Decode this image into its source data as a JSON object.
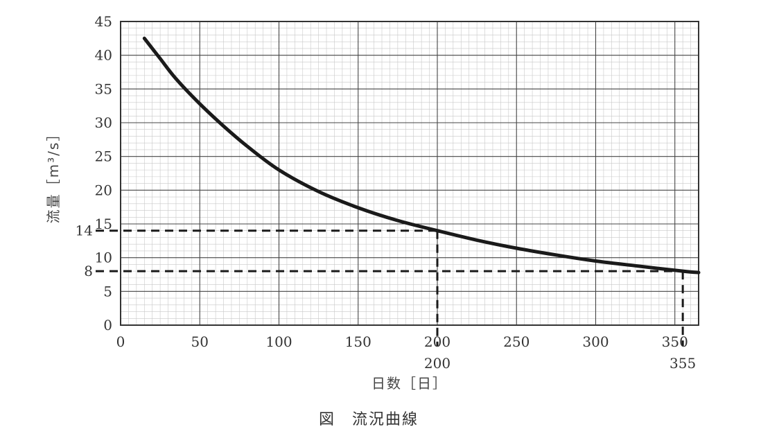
{
  "chart_data": {
    "type": "line",
    "title": "",
    "caption": "図　流況曲線",
    "xlabel": "日数［日］",
    "ylabel": "流量［m³/s］",
    "xlim": [
      0,
      365
    ],
    "ylim": [
      0,
      45
    ],
    "x_ticks": [
      0,
      50,
      100,
      150,
      200,
      250,
      300,
      350
    ],
    "x_tick_labels": [
      "0",
      "50",
      "100",
      "150",
      "200",
      "250",
      "300",
      "350"
    ],
    "y_ticks": [
      0,
      5,
      10,
      15,
      20,
      25,
      30,
      35,
      40,
      45
    ],
    "y_tick_labels": [
      "0",
      "5",
      "10",
      "15",
      "20",
      "25",
      "30",
      "35",
      "40",
      "45"
    ],
    "grid": true,
    "series": [
      {
        "x": [
          15,
          25,
          35,
          50,
          65,
          80,
          100,
          125,
          150,
          175,
          200,
          225,
          250,
          275,
          300,
          325,
          355,
          365
        ],
        "y": [
          42.5,
          39.5,
          36.5,
          32.8,
          29.5,
          26.5,
          23.0,
          19.8,
          17.4,
          15.5,
          14.0,
          12.6,
          11.4,
          10.4,
          9.5,
          8.8,
          8.0,
          7.8
        ]
      }
    ],
    "annotations": [
      {
        "axis": "y",
        "value": 14,
        "label": "14",
        "to_x": 200
      },
      {
        "axis": "y",
        "value": 8,
        "label": "8",
        "to_x": 355
      },
      {
        "axis": "x",
        "value": 200,
        "label": "200",
        "to_y": 14
      },
      {
        "axis": "x",
        "value": 355,
        "label": "355",
        "to_y": 8
      }
    ]
  }
}
